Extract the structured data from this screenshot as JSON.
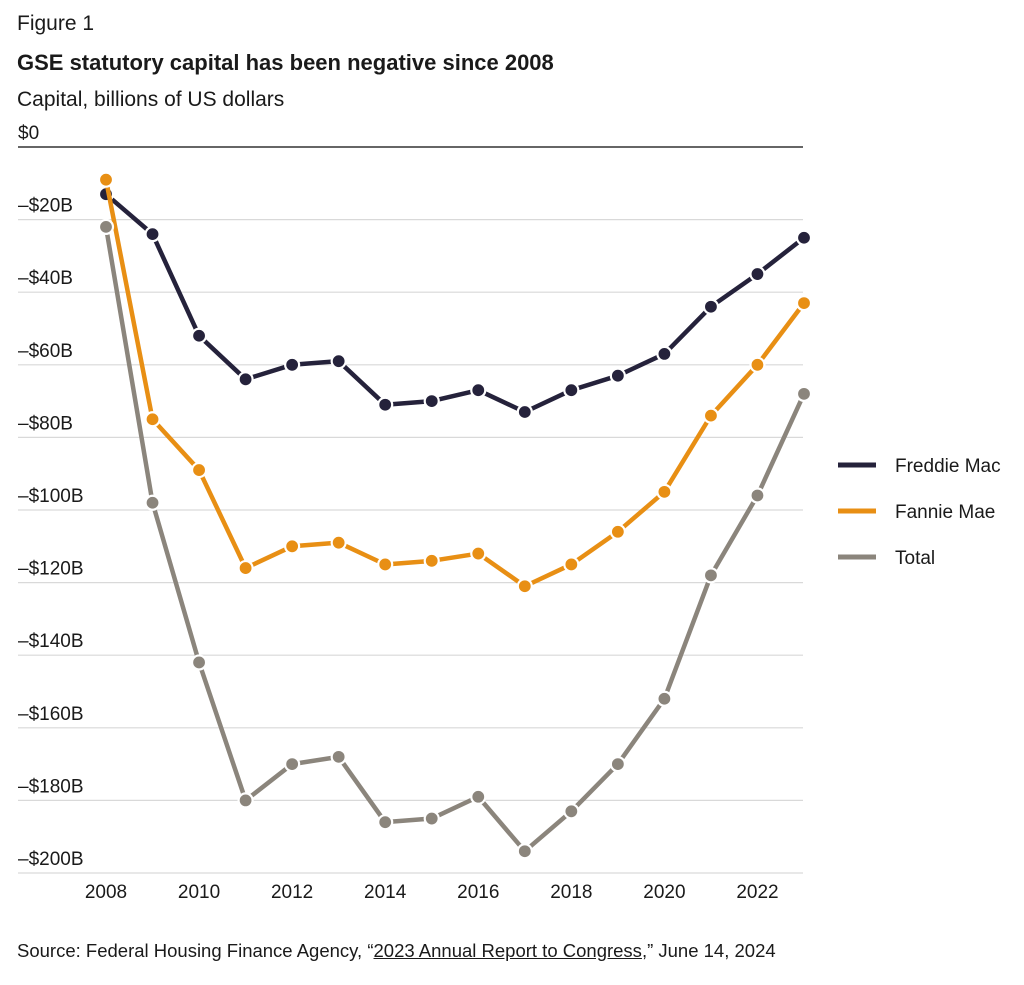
{
  "figure_label": "Figure 1",
  "title": "GSE statutory capital has been negative since 2008",
  "subtitle": "Capital, billions of US dollars",
  "source": {
    "prefix": "Source: Federal Housing Finance Agency, “",
    "link_text": "2023 Annual Report to Congress",
    "suffix": ",” June 14, 2024"
  },
  "colors": {
    "freddie": "#25223b",
    "fannie": "#e88f14",
    "total": "#8b857c",
    "grid": "#d9d9d9",
    "axis": "#333333"
  },
  "chart_data": {
    "type": "line",
    "x": [
      2008,
      2009,
      2010,
      2011,
      2012,
      2013,
      2014,
      2015,
      2016,
      2017,
      2018,
      2019,
      2020,
      2021,
      2022,
      2023
    ],
    "series": [
      {
        "name": "Freddie Mac",
        "values": [
          -13,
          -24,
          -52,
          -64,
          -60,
          -59,
          -71,
          -70,
          -67,
          -73,
          -67,
          -63,
          -57,
          -44,
          -35,
          -25
        ]
      },
      {
        "name": "Fannie Mae",
        "values": [
          -9,
          -75,
          -89,
          -116,
          -110,
          -109,
          -115,
          -114,
          -112,
          -121,
          -115,
          -106,
          -95,
          -74,
          -60,
          -43
        ]
      },
      {
        "name": "Total",
        "values": [
          -22,
          -98,
          -142,
          -180,
          -170,
          -168,
          -186,
          -185,
          -179,
          -194,
          -183,
          -170,
          -152,
          -118,
          -96,
          -68
        ]
      }
    ],
    "xlim": [
      2008,
      2023
    ],
    "ylim": [
      -200,
      0
    ],
    "x_ticks": [
      2008,
      2010,
      2012,
      2014,
      2016,
      2018,
      2020,
      2022
    ],
    "y_ticks": [
      0,
      -20,
      -40,
      -60,
      -80,
      -100,
      -120,
      -140,
      -160,
      -180,
      -200
    ],
    "y_tick_labels": [
      "$0",
      "–$20B",
      "–$40B",
      "–$60B",
      "–$80B",
      "–$100B",
      "–$120B",
      "–$140B",
      "–$160B",
      "–$180B",
      "–$200B"
    ],
    "grid": true,
    "legend_position": "right"
  }
}
